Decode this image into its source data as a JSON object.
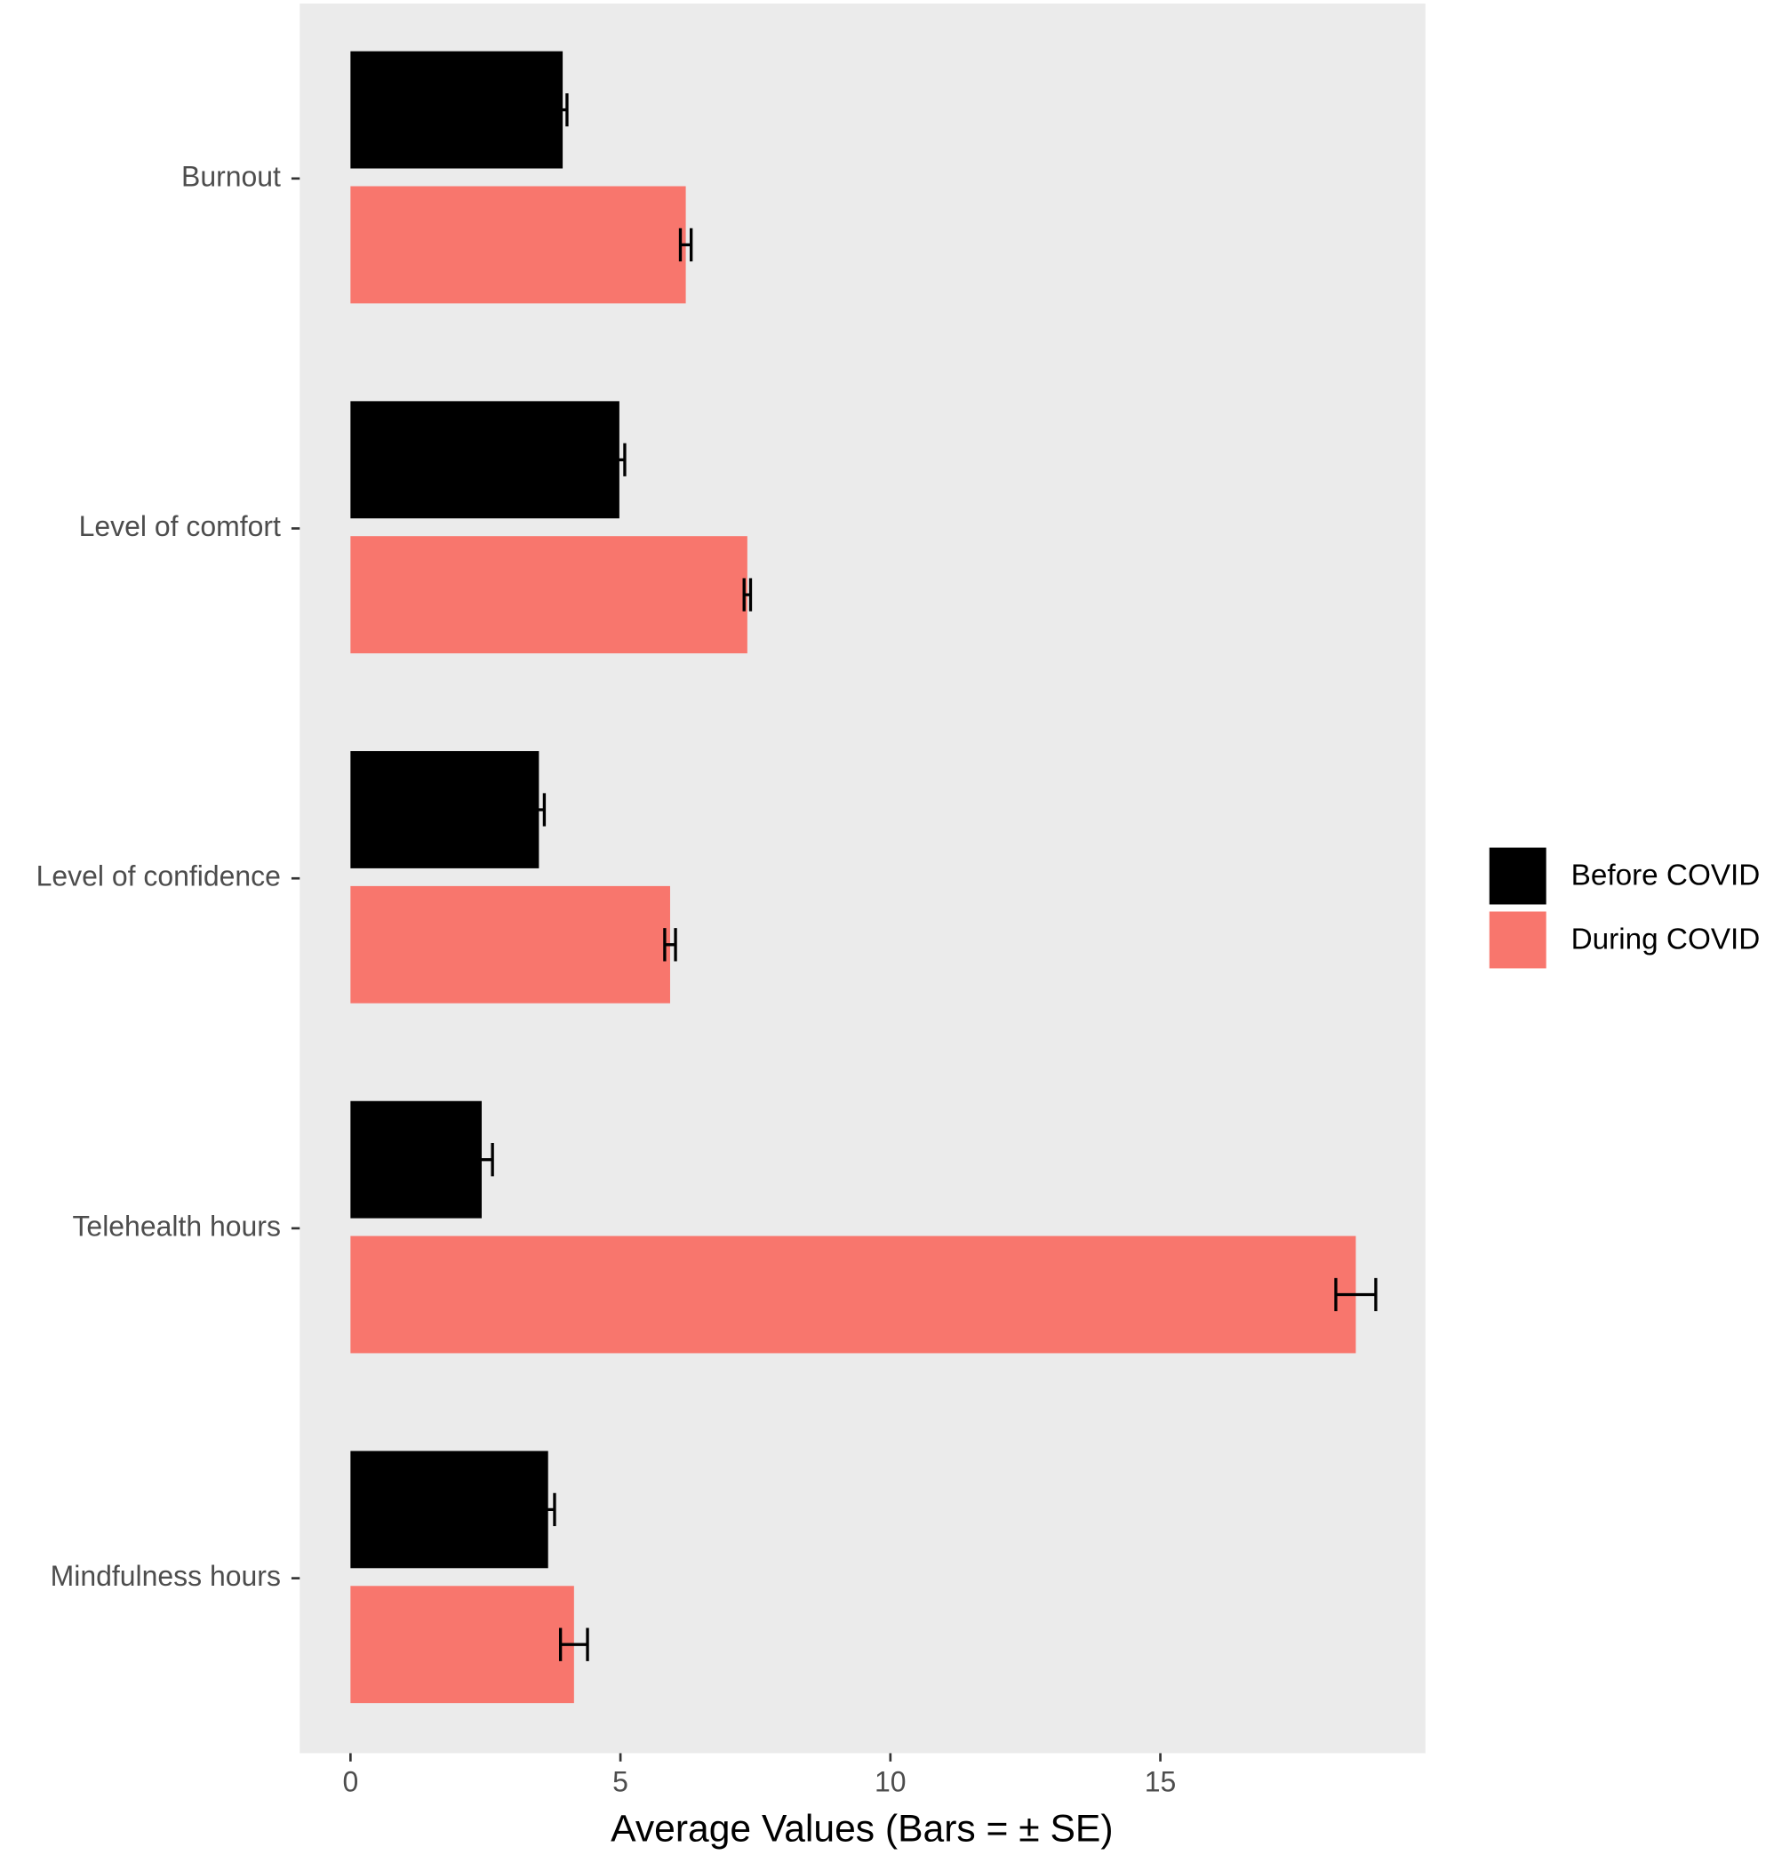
{
  "chart_data": {
    "type": "hbar",
    "x_label": "Average Values (Bars = ± SE)",
    "categories": [
      "Burnout",
      "Level of comfort",
      "Level of confidence",
      "Telehealth hours",
      "Mindfulness hours"
    ],
    "series": [
      {
        "name": "Before COVID",
        "color": "#000000",
        "values": [
          3.93,
          4.98,
          3.49,
          2.43,
          3.66
        ],
        "errors": [
          0.08,
          0.1,
          0.1,
          0.2,
          0.12
        ]
      },
      {
        "name": "During COVID",
        "color": "#F8766D",
        "values": [
          6.21,
          7.35,
          5.92,
          18.62,
          4.14
        ],
        "errors": [
          0.1,
          0.06,
          0.1,
          0.37,
          0.25
        ]
      }
    ],
    "xlim": [
      -0.94,
      19.91
    ],
    "xticks": [
      0,
      5,
      10,
      15
    ],
    "grid": false,
    "legend": "right"
  }
}
